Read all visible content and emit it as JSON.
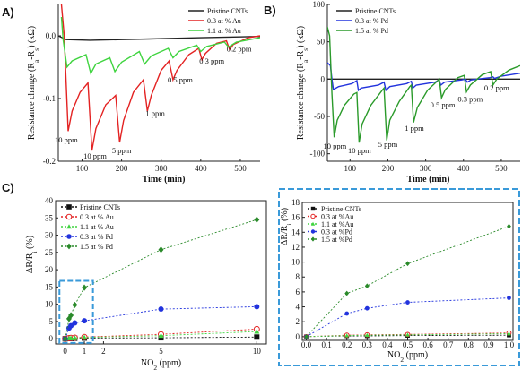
{
  "panel_labels": {
    "a": "A)",
    "b": "B)",
    "c": "C)"
  },
  "chart_data": [
    {
      "id": "A",
      "type": "line",
      "xlabel": "Time (min)",
      "ylabel": "Resistance change (R",
      "ylabel_sub1": "a",
      "ylabel_mid": "-R",
      "ylabel_sub2": "s",
      "ylabel_end": ") (kΩ)",
      "xlim": [
        40,
        550
      ],
      "ylim": [
        -0.2,
        0.05
      ],
      "xticks": [
        {
          "v": 100,
          "label": "100"
        },
        {
          "v": 200,
          "label": "200"
        },
        {
          "v": 300,
          "label": "300"
        },
        {
          "v": 400,
          "label": "400"
        },
        {
          "v": 500,
          "label": "500"
        }
      ],
      "yticks": [
        {
          "v": 0,
          "label": "0.0"
        },
        {
          "v": -0.1,
          "label": "-0.1"
        },
        {
          "v": -0.2,
          "label": "-0.2"
        }
      ],
      "legend_position": "top-right",
      "series": [
        {
          "name": "Pristine CNTs",
          "color": "#222222",
          "points": [
            [
              40,
              0.0
            ],
            [
              60,
              -0.006
            ],
            [
              120,
              -0.007
            ],
            [
              200,
              -0.006
            ],
            [
              270,
              -0.005
            ],
            [
              330,
              -0.004
            ],
            [
              400,
              -0.003
            ],
            [
              470,
              -0.002
            ],
            [
              550,
              -0.001
            ]
          ]
        },
        {
          "name": "0.3 at % Au",
          "color": "#e32222",
          "points": [
            [
              48,
              0.05
            ],
            [
              55,
              0.0
            ],
            [
              65,
              -0.152
            ],
            [
              75,
              -0.12
            ],
            [
              95,
              -0.09
            ],
            [
              115,
              -0.075
            ],
            [
              125,
              -0.183
            ],
            [
              135,
              -0.148
            ],
            [
              160,
              -0.11
            ],
            [
              185,
              -0.095
            ],
            [
              195,
              -0.17
            ],
            [
              205,
              -0.135
            ],
            [
              230,
              -0.09
            ],
            [
              255,
              -0.07
            ],
            [
              265,
              -0.12
            ],
            [
              275,
              -0.095
            ],
            [
              300,
              -0.055
            ],
            [
              320,
              -0.04
            ],
            [
              330,
              -0.07
            ],
            [
              340,
              -0.055
            ],
            [
              370,
              -0.03
            ],
            [
              395,
              -0.02
            ],
            [
              403,
              -0.038
            ],
            [
              412,
              -0.028
            ],
            [
              440,
              -0.012
            ],
            [
              465,
              -0.008
            ],
            [
              473,
              -0.022
            ],
            [
              482,
              -0.014
            ],
            [
              520,
              -0.003
            ],
            [
              550,
              0.0
            ]
          ]
        },
        {
          "name": "1.1 at % Au",
          "color": "#3fd43f",
          "points": [
            [
              48,
              0.03
            ],
            [
              52,
              -0.005
            ],
            [
              62,
              -0.05
            ],
            [
              75,
              -0.04
            ],
            [
              110,
              -0.03
            ],
            [
              122,
              -0.06
            ],
            [
              135,
              -0.045
            ],
            [
              170,
              -0.035
            ],
            [
              183,
              -0.057
            ],
            [
              200,
              -0.042
            ],
            [
              245,
              -0.025
            ],
            [
              258,
              -0.045
            ],
            [
              275,
              -0.032
            ],
            [
              318,
              -0.02
            ],
            [
              330,
              -0.035
            ],
            [
              345,
              -0.025
            ],
            [
              390,
              -0.015
            ],
            [
              400,
              -0.025
            ],
            [
              415,
              -0.017
            ],
            [
              460,
              -0.01
            ],
            [
              470,
              -0.018
            ],
            [
              490,
              -0.01
            ],
            [
              550,
              -0.003
            ]
          ]
        }
      ],
      "annotations": [
        {
          "text": "10 ppm",
          "x": 60,
          "y": -0.17
        },
        {
          "text": "10 ppm",
          "x": 133,
          "y": -0.196
        },
        {
          "text": "5 ppm",
          "x": 200,
          "y": -0.187
        },
        {
          "text": "1 ppm",
          "x": 285,
          "y": -0.128
        },
        {
          "text": "0.5 ppm",
          "x": 348,
          "y": -0.074
        },
        {
          "text": "0.3 ppm",
          "x": 428,
          "y": -0.044
        },
        {
          "text": "0.2 ppm",
          "x": 497,
          "y": -0.025
        }
      ]
    },
    {
      "id": "B",
      "type": "line",
      "xlabel": "Time (min)",
      "ylabel": "Resistance change (R",
      "ylabel_sub1": "a",
      "ylabel_mid": "-R",
      "ylabel_sub2": "s",
      "ylabel_end": ") (kΩ)",
      "xlim": [
        40,
        550
      ],
      "ylim": [
        -110,
        100
      ],
      "xticks": [
        {
          "v": 100,
          "label": "100"
        },
        {
          "v": 200,
          "label": "200"
        },
        {
          "v": 300,
          "label": "300"
        },
        {
          "v": 400,
          "label": "400"
        },
        {
          "v": 500,
          "label": "500"
        }
      ],
      "yticks": [
        {
          "v": 100,
          "label": "100"
        },
        {
          "v": 50,
          "label": "50"
        },
        {
          "v": 0,
          "label": "0"
        },
        {
          "v": -50,
          "label": "-50"
        },
        {
          "v": -100,
          "label": "-100"
        }
      ],
      "legend_position": "top-left",
      "series": [
        {
          "name": "Pristine CNTs",
          "color": "#222222",
          "points": [
            [
              40,
              0
            ],
            [
              550,
              0
            ]
          ]
        },
        {
          "name": "0.3 at % Pd",
          "color": "#2233dd",
          "points": [
            [
              40,
              22
            ],
            [
              48,
              18
            ],
            [
              52,
              0
            ],
            [
              56,
              -14
            ],
            [
              70,
              -10
            ],
            [
              105,
              -6
            ],
            [
              118,
              -2
            ],
            [
              122,
              -15
            ],
            [
              130,
              -12
            ],
            [
              175,
              -8
            ],
            [
              190,
              -4
            ],
            [
              195,
              -15
            ],
            [
              205,
              -10
            ],
            [
              250,
              -6
            ],
            [
              262,
              -3
            ],
            [
              266,
              -12
            ],
            [
              275,
              -8
            ],
            [
              325,
              -4
            ],
            [
              335,
              -1
            ],
            [
              340,
              -8
            ],
            [
              350,
              -4
            ],
            [
              395,
              -1
            ],
            [
              405,
              0
            ],
            [
              410,
              -4
            ],
            [
              420,
              -1
            ],
            [
              470,
              2
            ],
            [
              478,
              3
            ],
            [
              482,
              1
            ],
            [
              500,
              4
            ],
            [
              550,
              8
            ]
          ]
        },
        {
          "name": "1.5 at % Pd",
          "color": "#2a9a2a",
          "points": [
            [
              40,
              70
            ],
            [
              46,
              58
            ],
            [
              52,
              -20
            ],
            [
              58,
              -78
            ],
            [
              66,
              -55
            ],
            [
              85,
              -35
            ],
            [
              110,
              -20
            ],
            [
              118,
              -18
            ],
            [
              124,
              -85
            ],
            [
              132,
              -60
            ],
            [
              155,
              -35
            ],
            [
              185,
              -15
            ],
            [
              190,
              -12
            ],
            [
              197,
              -82
            ],
            [
              205,
              -55
            ],
            [
              230,
              -30
            ],
            [
              258,
              -10
            ],
            [
              262,
              -8
            ],
            [
              268,
              -58
            ],
            [
              278,
              -38
            ],
            [
              305,
              -15
            ],
            [
              330,
              -3
            ],
            [
              336,
              0
            ],
            [
              342,
              -25
            ],
            [
              352,
              -14
            ],
            [
              385,
              2
            ],
            [
              402,
              5
            ],
            [
              408,
              -17
            ],
            [
              418,
              -8
            ],
            [
              450,
              6
            ],
            [
              472,
              10
            ],
            [
              478,
              -8
            ],
            [
              488,
              0
            ],
            [
              520,
              12
            ],
            [
              550,
              18
            ]
          ]
        }
      ],
      "annotations": [
        {
          "text": "10 ppm",
          "x": 60,
          "y": -93
        },
        {
          "text": "10 ppm",
          "x": 125,
          "y": -99
        },
        {
          "text": "5 ppm",
          "x": 200,
          "y": -91
        },
        {
          "text": "1 ppm",
          "x": 270,
          "y": -69
        },
        {
          "text": "0.5 ppm",
          "x": 345,
          "y": -38
        },
        {
          "text": "0.3 ppm",
          "x": 418,
          "y": -30
        },
        {
          "text": "0.2 ppm",
          "x": 488,
          "y": -15
        }
      ]
    },
    {
      "id": "C",
      "type": "scatter",
      "xlabel": "NO",
      "xlabel_sub": "2",
      "xlabel_end": " (ppm)",
      "ylabel": "ΔR/R",
      "ylabel_sub": "i",
      "ylabel_end": " (%)",
      "xlim": [
        -0.5,
        10.5
      ],
      "ylim": [
        -1.5,
        40
      ],
      "xticks": [
        {
          "v": 0,
          "label": "0"
        },
        {
          "v": 1,
          "label": "1"
        },
        {
          "v": 2,
          "label": "2"
        },
        {
          "v": 5,
          "label": "5"
        },
        {
          "v": 10,
          "label": "10"
        }
      ],
      "yticks": [
        {
          "v": 0,
          "label": "0"
        },
        {
          "v": 5,
          "label": "5"
        },
        {
          "v": 10,
          "label": "10"
        },
        {
          "v": 15,
          "label": "15"
        },
        {
          "v": 20,
          "label": "20"
        },
        {
          "v": 25,
          "label": "25"
        },
        {
          "v": 30,
          "label": "30"
        },
        {
          "v": 35,
          "label": "35"
        },
        {
          "v": 40,
          "label": "40"
        }
      ],
      "legend_position": "top-left",
      "series": [
        {
          "name": "Pristine CNTs",
          "color": "#111111",
          "marker": "square",
          "x": [
            0,
            0.2,
            0.3,
            0.5,
            1,
            5,
            10
          ],
          "y": [
            0,
            0.1,
            0.1,
            0.15,
            0.2,
            0.3,
            0.5
          ]
        },
        {
          "name": "0.3 at % Au",
          "color": "#e32222",
          "marker": "circle-open",
          "x": [
            0,
            0.2,
            0.3,
            0.5,
            1,
            5,
            10
          ],
          "y": [
            0,
            0.2,
            0.25,
            0.3,
            0.5,
            1.3,
            2.8
          ]
        },
        {
          "name": "1.1 at % Au",
          "color": "#3fd43f",
          "marker": "triangle",
          "x": [
            0,
            0.2,
            0.3,
            0.5,
            1,
            5,
            10
          ],
          "y": [
            0,
            0.15,
            0.2,
            0.25,
            0.4,
            0.9,
            2.1
          ]
        },
        {
          "name": "0.3 at % Pd",
          "color": "#2233dd",
          "marker": "circle",
          "x": [
            0,
            0.2,
            0.3,
            0.5,
            1,
            5,
            10
          ],
          "y": [
            0,
            3.1,
            3.8,
            4.6,
            5.2,
            8.6,
            9.3
          ]
        },
        {
          "name": "1.5 at % Pd",
          "color": "#2a8a2a",
          "marker": "diamond",
          "x": [
            0,
            0.2,
            0.3,
            0.5,
            1,
            5,
            10
          ],
          "y": [
            0,
            5.8,
            6.8,
            9.8,
            14.8,
            25.8,
            34.5
          ]
        }
      ]
    },
    {
      "id": "C-inset",
      "type": "scatter",
      "xlabel": "NO",
      "xlabel_sub": "2",
      "xlabel_end": " (ppm)",
      "ylabel": "ΔR/R",
      "ylabel_sub": "i",
      "ylabel_end": " (%)",
      "xlim": [
        -0.02,
        1.02
      ],
      "ylim": [
        -0.5,
        18
      ],
      "xticks": [
        {
          "v": 0,
          "label": "0.0"
        },
        {
          "v": 0.1,
          "label": "0.1"
        },
        {
          "v": 0.2,
          "label": "0.2"
        },
        {
          "v": 0.3,
          "label": "0.3"
        },
        {
          "v": 0.4,
          "label": "0.4"
        },
        {
          "v": 0.5,
          "label": "0.5"
        },
        {
          "v": 0.6,
          "label": "0.6"
        },
        {
          "v": 0.7,
          "label": "0.7"
        },
        {
          "v": 0.8,
          "label": "0.8"
        },
        {
          "v": 0.9,
          "label": "0.9"
        },
        {
          "v": 1.0,
          "label": "1.0"
        }
      ],
      "yticks": [
        {
          "v": 0,
          "label": "0"
        },
        {
          "v": 2,
          "label": "2"
        },
        {
          "v": 4,
          "label": "4"
        },
        {
          "v": 6,
          "label": "6"
        },
        {
          "v": 8,
          "label": "8"
        },
        {
          "v": 10,
          "label": "10"
        },
        {
          "v": 12,
          "label": "12"
        },
        {
          "v": 14,
          "label": "14"
        },
        {
          "v": 16,
          "label": "16"
        },
        {
          "v": 18,
          "label": "18"
        }
      ],
      "legend_position": "top-left",
      "series": [
        {
          "name": "Pristine CNTs",
          "color": "#111111",
          "marker": "square",
          "x": [
            0,
            0.2,
            0.3,
            0.5,
            1
          ],
          "y": [
            0,
            0.1,
            0.1,
            0.15,
            0.2
          ]
        },
        {
          "name": "0.3 at %Au",
          "color": "#e32222",
          "marker": "circle-open",
          "x": [
            0,
            0.2,
            0.3,
            0.5,
            1
          ],
          "y": [
            0,
            0.2,
            0.25,
            0.3,
            0.5
          ]
        },
        {
          "name": "1.1 at %Au",
          "color": "#3fd43f",
          "marker": "triangle",
          "x": [
            0,
            0.2,
            0.3,
            0.5,
            1
          ],
          "y": [
            0,
            0.15,
            0.2,
            0.25,
            0.4
          ]
        },
        {
          "name": "0.3 at %Pd",
          "color": "#2233dd",
          "marker": "circle",
          "x": [
            0,
            0.2,
            0.3,
            0.5,
            1
          ],
          "y": [
            0,
            3.1,
            3.8,
            4.6,
            5.2
          ]
        },
        {
          "name": "1.5 at %Pd",
          "color": "#2a8a2a",
          "marker": "diamond",
          "x": [
            0,
            0.2,
            0.3,
            0.5,
            1
          ],
          "y": [
            0,
            5.8,
            6.8,
            9.8,
            14.8
          ]
        }
      ]
    }
  ],
  "colors": {
    "highlight_box": "#3a9ad9"
  }
}
